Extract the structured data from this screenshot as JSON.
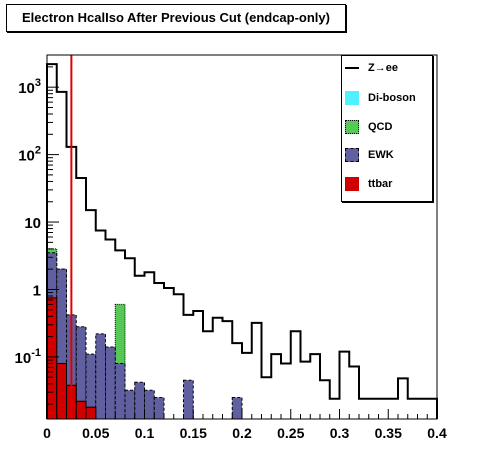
{
  "chart_data": {
    "type": "bar",
    "title": "Electron HcalIso After Previous Cut (endcap-only)",
    "xlabel": "",
    "ylabel": "",
    "xlim": [
      0,
      0.4
    ],
    "ylim": [
      0.012,
      3000
    ],
    "log_y": true,
    "grid": false,
    "legend_position": "top-right",
    "bin_width": 0.01,
    "x_tick_labels": [
      "0",
      "0.05",
      "0.1",
      "0.15",
      "0.2",
      "0.25",
      "0.3",
      "0.35",
      "0.4"
    ],
    "y_tick_labels": [
      "10^-1",
      "1",
      "10",
      "10^2",
      "10^3"
    ],
    "cut_line_x": 0.025,
    "series": [
      {
        "name": "Z→ee",
        "style": "step-line",
        "color": "#000000",
        "values": [
          2200,
          850,
          130,
          45,
          15,
          7.5,
          5.5,
          3.8,
          2.9,
          1.6,
          1.8,
          1.25,
          1.05,
          0.85,
          0.42,
          0.48,
          0.24,
          0.38,
          0.34,
          0.16,
          0.115,
          0.32,
          0.05,
          0.11,
          0.08,
          0.24,
          0.085,
          0.11,
          0.045,
          0.024,
          0.12,
          0.072,
          0.024,
          0.024,
          0.024,
          0.024,
          0.048,
          0.024,
          0.024,
          0.024
        ]
      },
      {
        "name": "Di-boson",
        "style": "fill",
        "color": "#4ff0ff",
        "values": []
      },
      {
        "name": "QCD",
        "style": "fill",
        "color": "#55c855",
        "values": [
          0,
          0,
          0,
          0,
          0,
          0,
          0,
          0.6,
          0,
          0,
          0,
          0,
          0,
          0,
          0,
          0,
          0,
          0,
          0,
          0,
          0,
          0,
          0,
          0,
          0,
          0,
          0,
          0,
          0,
          0,
          0,
          0,
          0,
          0,
          0,
          0,
          0,
          0,
          0,
          0
        ]
      },
      {
        "name": "EWK",
        "style": "fill",
        "color": "#6060a0",
        "values": [
          3.5,
          2.0,
          0.42,
          0.28,
          0.11,
          0.22,
          0.14,
          0.08,
          0.032,
          0.042,
          0.032,
          0.025,
          0,
          0,
          0.045,
          0,
          0,
          0,
          0,
          0.025,
          0,
          0,
          0,
          0,
          0,
          0,
          0,
          0,
          0,
          0,
          0,
          0,
          0,
          0,
          0,
          0,
          0,
          0,
          0,
          0
        ]
      },
      {
        "name": "ttbar",
        "style": "fill",
        "color": "#d00000",
        "values": [
          0.75,
          0.08,
          0.038,
          0.022,
          0.018,
          0,
          0,
          0,
          0,
          0,
          0,
          0,
          0,
          0,
          0,
          0,
          0,
          0,
          0,
          0,
          0,
          0,
          0,
          0,
          0,
          0,
          0,
          0,
          0,
          0,
          0,
          0,
          0,
          0,
          0,
          0,
          0,
          0,
          0,
          0
        ]
      }
    ],
    "qcd_extra_first_bins": [
      4.0,
      1.3,
      0.0
    ]
  },
  "colors": {
    "frame": "#000000",
    "cut_line": "#e00000",
    "zee_line": "#000000",
    "diboson": "#4ff0ff",
    "qcd": "#55c855",
    "ewk": "#6060a0",
    "ttbar": "#d00000"
  },
  "legend": {
    "zee": "Z→ee",
    "diboson": "Di-boson",
    "qcd": "QCD",
    "ewk": "EWK",
    "ttbar": "ttbar"
  }
}
